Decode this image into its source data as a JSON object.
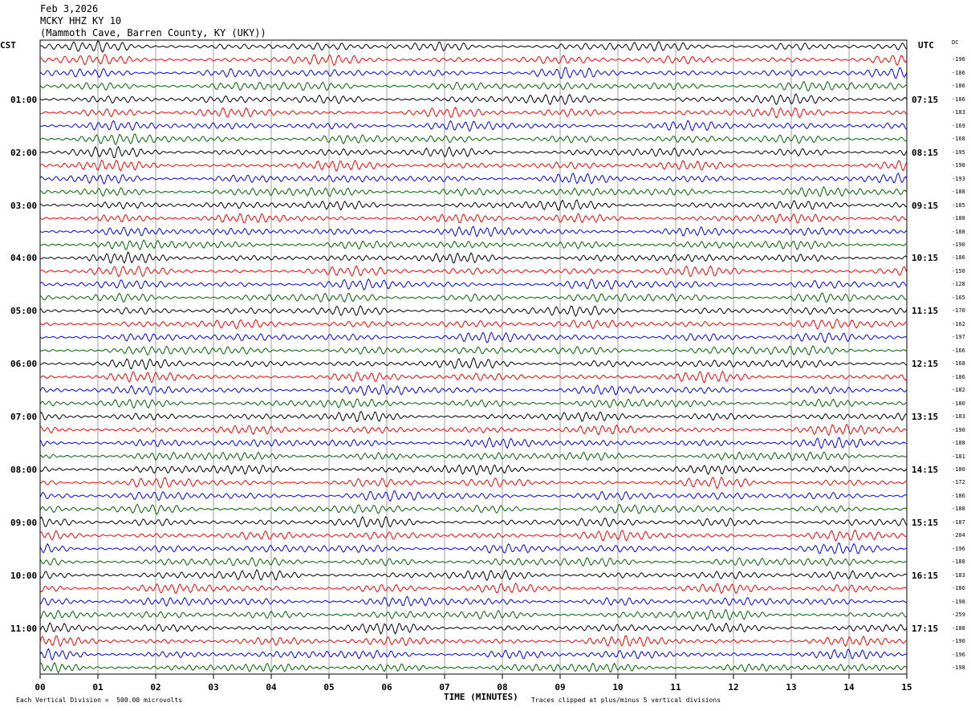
{
  "header": {
    "date": "Feb 3,2026",
    "station": "MCKY HHZ KY 10",
    "location": "(Mammoth Cave, Barren County, KY (UKY))"
  },
  "left_axis_title": "CST",
  "right_axis_title": "UTC",
  "dc_header": "DC",
  "chart_data": {
    "type": "line",
    "description_type": "seismogram helicorder",
    "xlabel": "TIME (MINUTES)",
    "x_ticks": [
      "00",
      "01",
      "02",
      "03",
      "04",
      "05",
      "06",
      "07",
      "08",
      "09",
      "10",
      "11",
      "12",
      "13",
      "14",
      "15"
    ],
    "xlim": [
      0,
      15
    ],
    "trace_minutes": 15,
    "trace_colors": [
      "#000000",
      "#ff0000",
      "#0000ff",
      "#006400"
    ],
    "left_hour_labels": [
      "01:00",
      "02:00",
      "03:00",
      "04:00",
      "05:00",
      "06:00",
      "07:00",
      "08:00",
      "09:00",
      "10:00",
      "11:00"
    ],
    "right_hour_labels": [
      "07:15",
      "08:15",
      "09:15",
      "10:15",
      "11:15",
      "12:15",
      "13:15",
      "14:15",
      "15:15",
      "16:15",
      "17:15"
    ],
    "dc_offsets": [
      "-196",
      "-186",
      "-186",
      "-186",
      "-183",
      "-169",
      "-168",
      "-195",
      "-198",
      "-193",
      "-188",
      "-185",
      "-188",
      "-188",
      "-190",
      "-186",
      "-150",
      "-128",
      "-165",
      "-170",
      "-162",
      "-197",
      "-166",
      "-168",
      "-186",
      "-182",
      "-180",
      "-183",
      "-190",
      "-188",
      "-181",
      "-180",
      "-172",
      "-186",
      "-188",
      "-187",
      "-204",
      "-196",
      "-188",
      "-183",
      "-186",
      "-198",
      "-259",
      "-188",
      "-190",
      "-196",
      "-198"
    ],
    "grid": true
  },
  "footer": {
    "scale_note": "Each Vertical Division =  500.00 microvolts",
    "clip_note": "Traces clipped at plus/minus 5 vertical divisions"
  }
}
